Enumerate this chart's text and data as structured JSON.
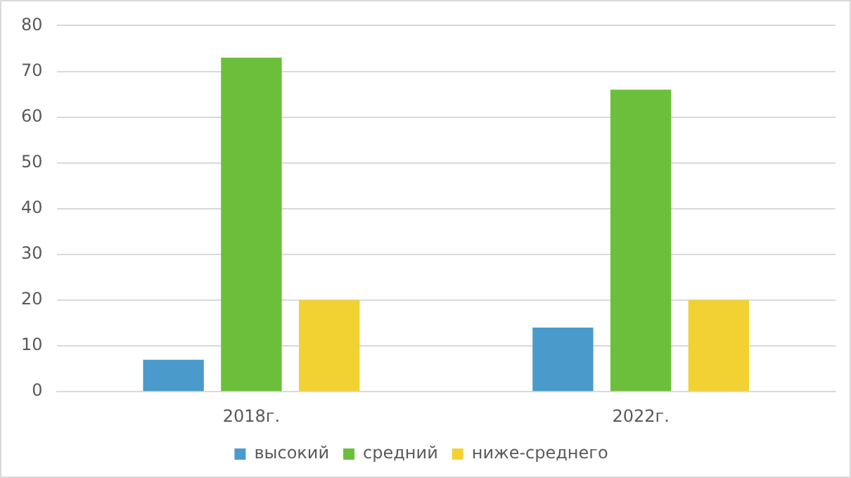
{
  "chart_data": {
    "type": "bar",
    "categories": [
      "2018г.",
      "2022г."
    ],
    "series": [
      {
        "name": "высокий",
        "color": "#4a9bcb",
        "values": [
          7,
          14
        ]
      },
      {
        "name": "средний",
        "color": "#6cbf3a",
        "values": [
          73,
          66
        ]
      },
      {
        "name": "ниже-среднего",
        "color": "#f1d232",
        "values": [
          20,
          20
        ]
      }
    ],
    "ylim": [
      0,
      80
    ],
    "yticks": [
      0,
      10,
      20,
      30,
      40,
      50,
      60,
      70,
      80
    ],
    "grid": "y",
    "legend": "bottom"
  }
}
